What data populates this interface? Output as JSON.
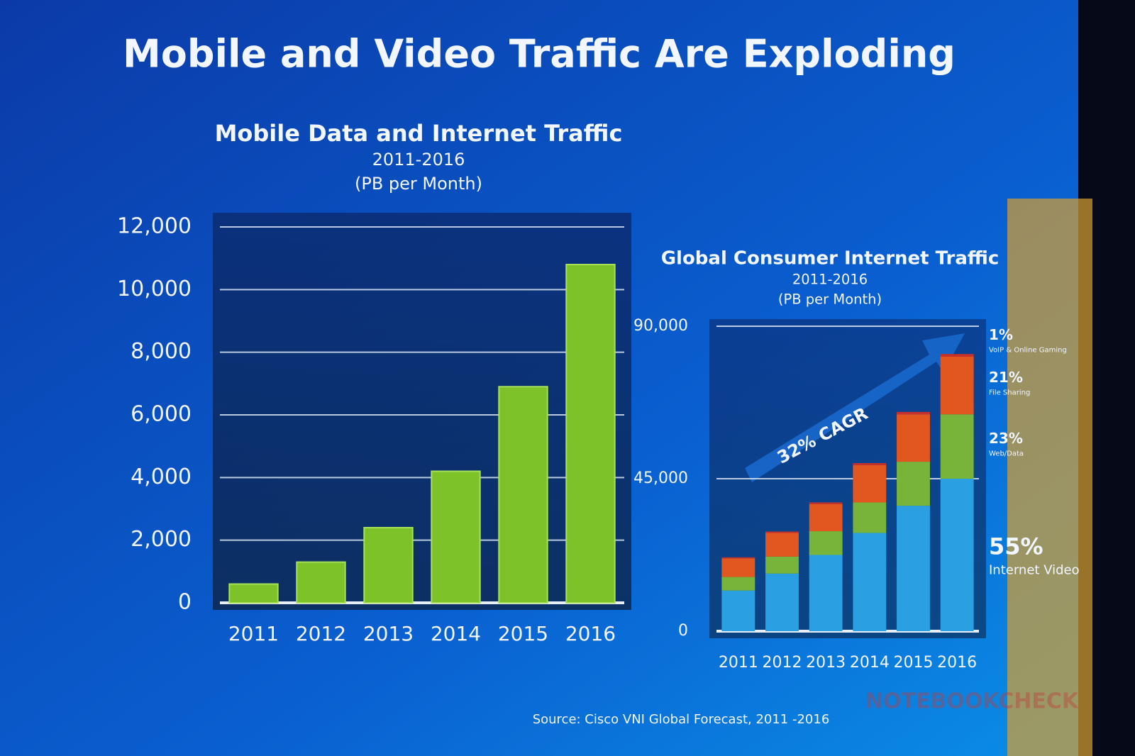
{
  "title": "Mobile and Video Traffic Are Exploding",
  "source": "Source: Cisco VNI Global Forecast, 2011 -2016",
  "watermark": "NOTEBOOKCHECK",
  "chart_data": [
    {
      "type": "bar",
      "title": "Mobile Data and Internet Traffic",
      "subtitle": "2011-2016",
      "units": "(PB per Month)",
      "categories": [
        "2011",
        "2012",
        "2013",
        "2014",
        "2015",
        "2016"
      ],
      "values": [
        600,
        1300,
        2400,
        4200,
        6900,
        10800
      ],
      "color": "#7ec22a",
      "ylim": [
        0,
        12000
      ],
      "yticks": [
        0,
        {
          "value": 2000,
          "label": "2,000"
        },
        {
          "value": 4000,
          "label": "4,000"
        },
        {
          "value": 6000,
          "label": "6,000"
        },
        {
          "value": 8000,
          "label": "8,000"
        },
        {
          "value": 10000,
          "label": "10,000"
        },
        {
          "value": 12000,
          "label": "12,000"
        }
      ],
      "grid": true
    },
    {
      "type": "stacked_bar",
      "title": "Global Consumer Internet Traffic",
      "subtitle": "2011-2016",
      "units": "(PB per Month)",
      "annotation": "32% CAGR",
      "categories": [
        "2011",
        "2012",
        "2013",
        "2014",
        "2015",
        "2016"
      ],
      "series": [
        {
          "name": "Internet Video",
          "share": {
            "value": 55,
            "label": "55%"
          },
          "color": "#2a9fe2",
          "values": [
            12000,
            17000,
            22500,
            29000,
            37000,
            45000
          ]
        },
        {
          "name": "Web/Data",
          "share": {
            "value": 23,
            "label": "23%"
          },
          "color": "#79b43a",
          "values": [
            4000,
            5000,
            7000,
            9000,
            13000,
            19000
          ]
        },
        {
          "name": "File Sharing",
          "share": {
            "value": 21,
            "label": "21%"
          },
          "color": "#e2561f",
          "values": [
            5500,
            7000,
            8000,
            11000,
            14000,
            17000
          ]
        },
        {
          "name": "VoIP & Online Gaming",
          "share": {
            "value": 1,
            "label": "1%"
          },
          "color": "#c8302a",
          "values": [
            300,
            400,
            500,
            600,
            700,
            800
          ]
        }
      ],
      "ylim": [
        0,
        90000
      ],
      "yticks": [
        0,
        {
          "value": 45000,
          "label": "45,000"
        },
        {
          "value": 90000,
          "label": "90,000"
        }
      ],
      "grid": true
    }
  ]
}
